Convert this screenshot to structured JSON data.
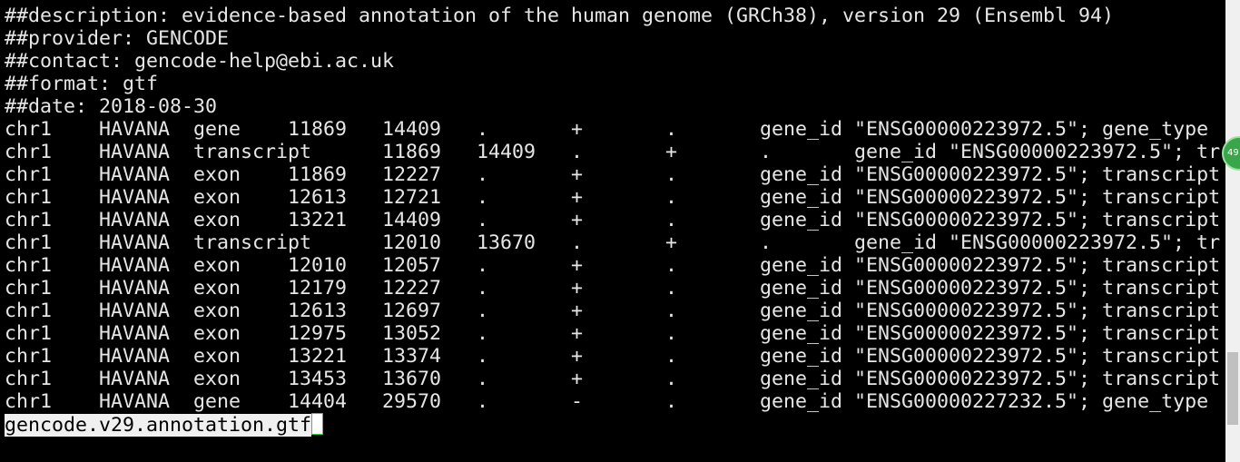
{
  "header_lines": [
    "##description: evidence-based annotation of the human genome (GRCh38), version 29 (Ensembl 94)",
    "##provider: GENCODE",
    "##contact: gencode-help@ebi.ac.uk",
    "##format: gtf",
    "##date: 2018-08-30"
  ],
  "rows": [
    [
      "chr1",
      "HAVANA",
      "gene",
      "11869",
      "14409",
      ".",
      "+",
      ".",
      "gene_id \"ENSG00000223972.5\"; gene_type"
    ],
    [
      "chr1",
      "HAVANA",
      "transcript",
      "11869",
      "14409",
      ".",
      "+",
      ".",
      "gene_id \"ENSG00000223972.5\"; tr"
    ],
    [
      "chr1",
      "HAVANA",
      "exon",
      "11869",
      "12227",
      ".",
      "+",
      ".",
      "gene_id \"ENSG00000223972.5\"; transcript"
    ],
    [
      "chr1",
      "HAVANA",
      "exon",
      "12613",
      "12721",
      ".",
      "+",
      ".",
      "gene_id \"ENSG00000223972.5\"; transcript"
    ],
    [
      "chr1",
      "HAVANA",
      "exon",
      "13221",
      "14409",
      ".",
      "+",
      ".",
      "gene_id \"ENSG00000223972.5\"; transcript"
    ],
    [
      "chr1",
      "HAVANA",
      "transcript",
      "12010",
      "13670",
      ".",
      "+",
      ".",
      "gene_id \"ENSG00000223972.5\"; tr"
    ],
    [
      "chr1",
      "HAVANA",
      "exon",
      "12010",
      "12057",
      ".",
      "+",
      ".",
      "gene_id \"ENSG00000223972.5\"; transcript"
    ],
    [
      "chr1",
      "HAVANA",
      "exon",
      "12179",
      "12227",
      ".",
      "+",
      ".",
      "gene_id \"ENSG00000223972.5\"; transcript"
    ],
    [
      "chr1",
      "HAVANA",
      "exon",
      "12613",
      "12697",
      ".",
      "+",
      ".",
      "gene_id \"ENSG00000223972.5\"; transcript"
    ],
    [
      "chr1",
      "HAVANA",
      "exon",
      "12975",
      "13052",
      ".",
      "+",
      ".",
      "gene_id \"ENSG00000223972.5\"; transcript"
    ],
    [
      "chr1",
      "HAVANA",
      "exon",
      "13221",
      "13374",
      ".",
      "+",
      ".",
      "gene_id \"ENSG00000223972.5\"; transcript"
    ],
    [
      "chr1",
      "HAVANA",
      "exon",
      "13453",
      "13670",
      ".",
      "+",
      ".",
      "gene_id \"ENSG00000223972.5\"; transcript"
    ],
    [
      "chr1",
      "HAVANA",
      "gene",
      "14404",
      "29570",
      ".",
      "-",
      ".",
      "gene_id \"ENSG00000227232.5\"; gene_type"
    ]
  ],
  "status_line": "gencode.v29.annotation.gtf",
  "badge": "49"
}
